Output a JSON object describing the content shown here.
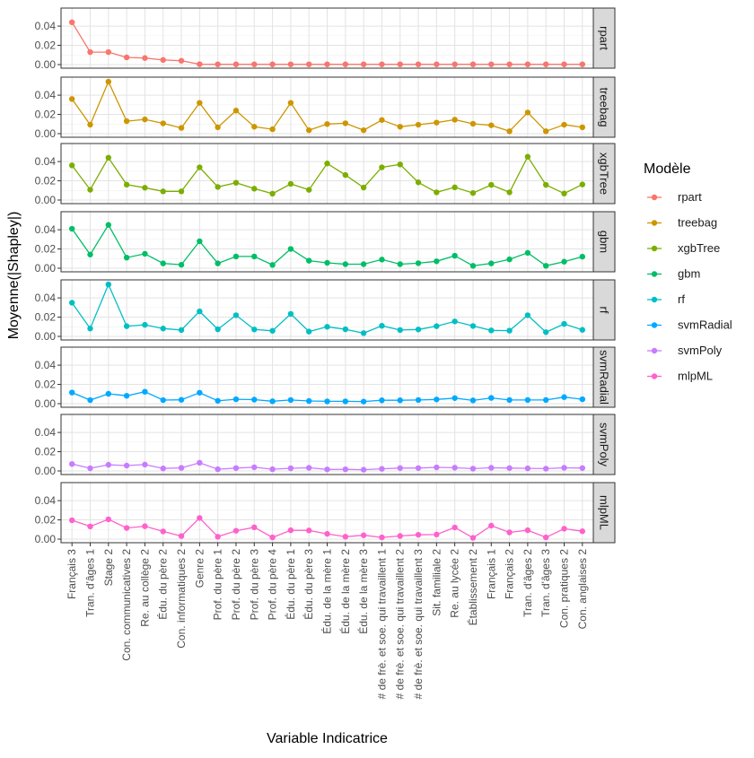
{
  "chart_data": {
    "type": "line",
    "facet_by": "model",
    "xlabel": "Variable Indicatrice",
    "ylabel": "Moyenne(|Shapley|)",
    "ylim": [
      0,
      0.055
    ],
    "yticks": [
      0.0,
      0.02,
      0.04
    ],
    "ytick_labels": [
      "0.00",
      "0.02",
      "0.04"
    ],
    "grid": true,
    "legend": {
      "title": "Modèle",
      "position": "right"
    },
    "categories": [
      "Français 3",
      "Tran. d'âges 1",
      "Stage 2",
      "Con. communicatives 2",
      "Re. au collège 2",
      "Édu. du père 2",
      "Con. informatiques 2",
      "Genre 2",
      "Prof. du père 1",
      "Prof. du père 2",
      "Prof. du père 3",
      "Prof. du père 4",
      "Édu. du père 1",
      "Édu. du père 3",
      "Édu. de la mère 1",
      "Édu. de la mère 2",
      "Édu. de la mère 3",
      "# de frè. et soe. qui travaillent 1",
      "# de frè. et soe. qui travaillent 2",
      "# de frè. et soe. qui travaillent 3",
      "Sit. familiale 2",
      "Re. au lycée 2",
      "Établissement 2",
      "Français 1",
      "Français 2",
      "Tran. d'âges 2",
      "Tran. d'âges 3",
      "Con. pratiques 2",
      "Con. anglaises 2"
    ],
    "series": [
      {
        "name": "rpart",
        "color": "#F8766D",
        "values": [
          0.044,
          0.013,
          0.013,
          0.0075,
          0.0068,
          0.0048,
          0.004,
          0.0004,
          0.0003,
          0.0003,
          0.0003,
          0.0003,
          0.0003,
          0.0003,
          0.0003,
          0.0003,
          0.0003,
          0.0003,
          0.0003,
          0.0003,
          0.0003,
          0.0003,
          0.0003,
          0.0003,
          0.0003,
          0.0003,
          0.0003,
          0.0003,
          0.0003
        ]
      },
      {
        "name": "treebag",
        "color": "#CD9600",
        "values": [
          0.036,
          0.0093,
          0.054,
          0.013,
          0.0148,
          0.0107,
          0.006,
          0.032,
          0.0066,
          0.024,
          0.0072,
          0.0046,
          0.032,
          0.0036,
          0.01,
          0.0108,
          0.0036,
          0.0142,
          0.0072,
          0.0093,
          0.0115,
          0.0145,
          0.0103,
          0.0087,
          0.0025,
          0.022,
          0.0025,
          0.0093,
          0.0066
        ]
      },
      {
        "name": "xgbTree",
        "color": "#7CAE00",
        "values": [
          0.036,
          0.0107,
          0.044,
          0.016,
          0.0128,
          0.009,
          0.009,
          0.034,
          0.0136,
          0.018,
          0.0118,
          0.0066,
          0.0168,
          0.0106,
          0.038,
          0.026,
          0.013,
          0.034,
          0.037,
          0.0184,
          0.008,
          0.0132,
          0.0073,
          0.0158,
          0.008,
          0.045,
          0.0158,
          0.0068,
          0.0162
        ]
      },
      {
        "name": "gbm",
        "color": "#00BE67",
        "values": [
          0.041,
          0.0142,
          0.045,
          0.011,
          0.015,
          0.005,
          0.0036,
          0.028,
          0.005,
          0.0122,
          0.0122,
          0.0034,
          0.02,
          0.0078,
          0.0056,
          0.0042,
          0.0042,
          0.009,
          0.0042,
          0.0052,
          0.0072,
          0.013,
          0.0025,
          0.005,
          0.0092,
          0.016,
          0.0025,
          0.0068,
          0.012
        ]
      },
      {
        "name": "rf",
        "color": "#00BFC4",
        "values": [
          0.035,
          0.0082,
          0.054,
          0.0106,
          0.012,
          0.0082,
          0.0066,
          0.026,
          0.0074,
          0.022,
          0.0072,
          0.0058,
          0.0234,
          0.005,
          0.01,
          0.0074,
          0.0034,
          0.011,
          0.0066,
          0.0072,
          0.0106,
          0.0156,
          0.0108,
          0.0062,
          0.006,
          0.022,
          0.0044,
          0.013,
          0.0068
        ]
      },
      {
        "name": "svmRadial",
        "color": "#00A9FF",
        "values": [
          0.0116,
          0.0037,
          0.0103,
          0.0082,
          0.0124,
          0.0037,
          0.004,
          0.0114,
          0.003,
          0.0046,
          0.0042,
          0.0025,
          0.0038,
          0.0028,
          0.0024,
          0.0024,
          0.0022,
          0.0035,
          0.0035,
          0.0038,
          0.0044,
          0.0058,
          0.0034,
          0.006,
          0.0038,
          0.0038,
          0.0038,
          0.0068,
          0.0046
        ]
      },
      {
        "name": "svmPoly",
        "color": "#C77CFF",
        "values": [
          0.0072,
          0.0028,
          0.0064,
          0.0056,
          0.0066,
          0.0026,
          0.0032,
          0.0085,
          0.0018,
          0.003,
          0.0038,
          0.0018,
          0.0028,
          0.0033,
          0.0016,
          0.0017,
          0.0013,
          0.0022,
          0.003,
          0.003,
          0.0037,
          0.0034,
          0.0024,
          0.0033,
          0.003,
          0.0027,
          0.0024,
          0.0033,
          0.003
        ]
      },
      {
        "name": "mlpML",
        "color": "#FF61CC",
        "values": [
          0.0196,
          0.0132,
          0.0206,
          0.0116,
          0.0134,
          0.008,
          0.0032,
          0.022,
          0.0025,
          0.0087,
          0.0123,
          0.0018,
          0.0092,
          0.009,
          0.0055,
          0.0025,
          0.004,
          0.0018,
          0.0033,
          0.0045,
          0.0048,
          0.0121,
          0.0013,
          0.014,
          0.007,
          0.0092,
          0.0018,
          0.0108,
          0.0082
        ]
      }
    ]
  }
}
